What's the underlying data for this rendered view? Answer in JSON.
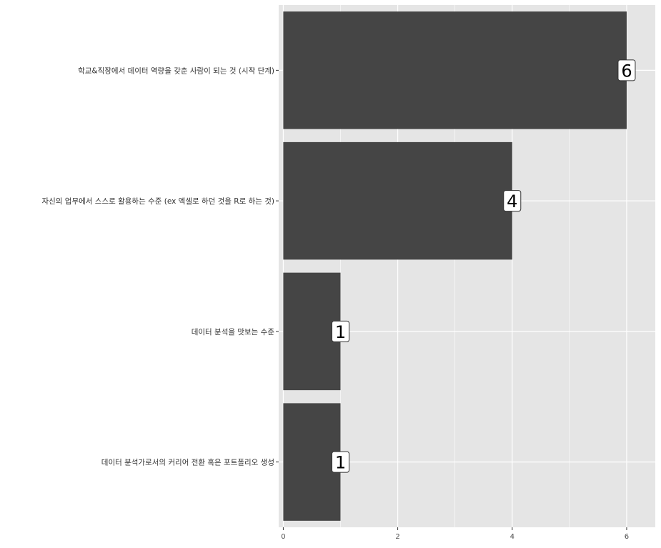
{
  "chart_data": {
    "type": "bar",
    "orientation": "horizontal",
    "categories": [
      "학교&직장에서 데이터 역량을 갖춘 사람이 되는 것 (시작 단계)",
      "자신의 업무에서 스스로 활용하는 수준 (ex 엑셀로 하던 것을 R로 하는 것)",
      "데이터 분석을 맛보는 수준",
      "데이터 분석가로서의 커리어 전환 혹은 포트폴리오 생성"
    ],
    "values": [
      6,
      4,
      1,
      1
    ],
    "data_labels": [
      "6",
      "4",
      "1",
      "1"
    ],
    "x_ticks": [
      "0",
      "2",
      "4",
      "6"
    ],
    "xlim": [
      -0.0,
      6.3
    ],
    "grid": true,
    "legend": "none",
    "colors": {
      "panel_bg": "#e5e5e5",
      "grid": "#ffffff",
      "bar": "#454545",
      "label_box_fill": "#ffffff",
      "label_box_stroke": "#333333",
      "text": "#333333"
    }
  }
}
